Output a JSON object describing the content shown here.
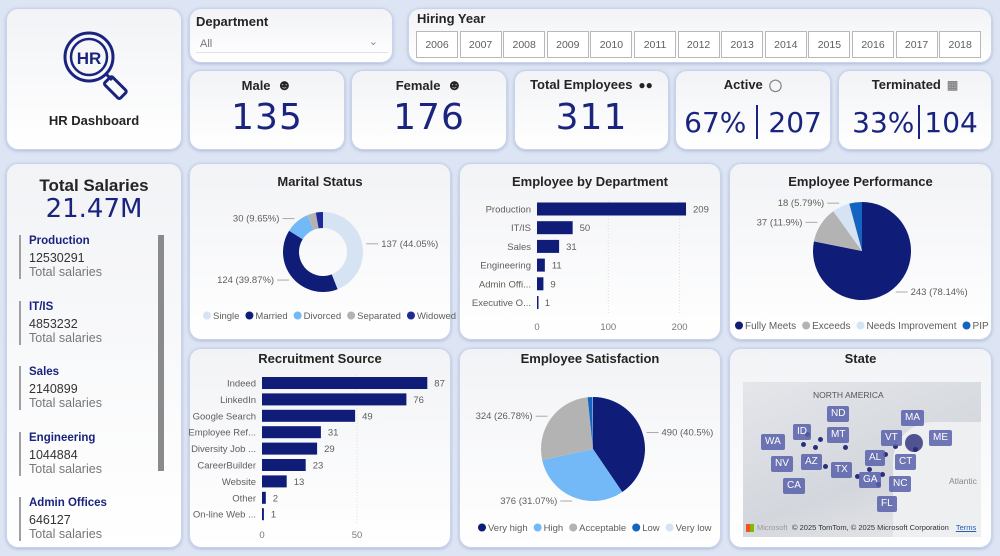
{
  "logo": {
    "text": "HR",
    "title": "HR Dashboard",
    "icon": "hr-magnifier-icon"
  },
  "department_filter": {
    "label": "Department",
    "value": "All"
  },
  "hiring_year": {
    "label": "Hiring Year",
    "years": [
      "2006",
      "2007",
      "2008",
      "2009",
      "2010",
      "2011",
      "2012",
      "2013",
      "2014",
      "2015",
      "2016",
      "2017",
      "2018"
    ]
  },
  "kpis": {
    "male": {
      "label": "Male",
      "value": "135",
      "icon": "male-face-icon"
    },
    "female": {
      "label": "Female",
      "value": "176",
      "icon": "female-face-icon"
    },
    "total": {
      "label": "Total Employees",
      "value": "311",
      "icon": "group-icon"
    },
    "active": {
      "label": "Active",
      "pct": "67%",
      "value": "207",
      "icon": "team-icon"
    },
    "terminated": {
      "label": "Terminated",
      "pct": "33%",
      "value": "104",
      "icon": "exit-icon"
    }
  },
  "salaries": {
    "title": "Total Salaries",
    "total": "21.47M",
    "items": [
      {
        "name": "Production",
        "value": "12530291",
        "label": "Total salaries"
      },
      {
        "name": "IT/IS",
        "value": "4853232",
        "label": "Total salaries"
      },
      {
        "name": "Sales",
        "value": "2140899",
        "label": "Total salaries"
      },
      {
        "name": "Engineering",
        "value": "1044884",
        "label": "Total salaries"
      },
      {
        "name": "Admin Offices",
        "value": "646127",
        "label": "Total salaries"
      }
    ]
  },
  "colors": {
    "navy": "#0f1c78",
    "light": "#d6e3f3",
    "sky": "#74b9f7",
    "gray": "#b3b3b3",
    "blue": "#1565c0",
    "indigo": "#1e2a9a"
  },
  "chart_data": [
    {
      "id": "marital",
      "type": "pie",
      "donut": true,
      "title": "Marital Status",
      "categories": [
        "Single",
        "Married",
        "Divorced",
        "Separated",
        "Widowed"
      ],
      "values": [
        137,
        124,
        30,
        11,
        9
      ],
      "labels": [
        "137 (44.05%)",
        "124 (39.87%)",
        "30 (9.65%)",
        "",
        ""
      ],
      "colors": [
        "#d6e3f3",
        "#0f1c78",
        "#74b9f7",
        "#b3b3b3",
        "#1e2a9a"
      ],
      "legend": "bottom"
    },
    {
      "id": "dept",
      "type": "bar",
      "orientation": "horizontal",
      "title": "Employee by Department",
      "categories": [
        "Production",
        "IT/IS",
        "Sales",
        "Engineering",
        "Admin Offi...",
        "Executive O..."
      ],
      "values": [
        209,
        50,
        31,
        11,
        9,
        1
      ],
      "xticks": [
        "0",
        "100",
        "200"
      ],
      "xlim": [
        0,
        230
      ]
    },
    {
      "id": "perf",
      "type": "pie",
      "title": "Employee Performance",
      "categories": [
        "Fully Meets",
        "Exceeds",
        "Needs Improvement",
        "PIP"
      ],
      "values": [
        243,
        37,
        18,
        13
      ],
      "labels": [
        "243 (78.14%)",
        "37 (11.9%)",
        "18 (5.79%)",
        ""
      ],
      "colors": [
        "#0f1c78",
        "#b3b3b3",
        "#d6e3f3",
        "#1565c0"
      ],
      "legend": "bottom"
    },
    {
      "id": "recruit",
      "type": "bar",
      "orientation": "horizontal",
      "title": "Recruitment Source",
      "categories": [
        "Indeed",
        "LinkedIn",
        "Google Search",
        "Employee Ref...",
        "Diversity Job ...",
        "CareerBuilder",
        "Website",
        "Other",
        "On-line Web ..."
      ],
      "values": [
        87,
        76,
        49,
        31,
        29,
        23,
        13,
        2,
        1
      ],
      "xticks": [
        "0",
        "50"
      ],
      "xlim": [
        0,
        95
      ]
    },
    {
      "id": "satis",
      "type": "pie",
      "title": "Employee Satisfaction",
      "categories": [
        "Very high",
        "High",
        "Acceptable",
        "Low",
        "Very low"
      ],
      "values": [
        490,
        376,
        324,
        18,
        2
      ],
      "labels": [
        "490 (40.5%)",
        "376 (31.07%)",
        "324 (26.78%)",
        "",
        ""
      ],
      "colors": [
        "#0f1c78",
        "#74b9f7",
        "#b3b3b3",
        "#1565c0",
        "#d6e3f3"
      ],
      "legend": "bottom"
    }
  ],
  "map": {
    "title": "State",
    "region_label": "NORTH AMERICA",
    "ocean_label": "Atlantic",
    "attribution": "© 2025 TomTom, © 2025 Microsoft Corporation",
    "terms": "Terms",
    "brand": "Microsoft Bing",
    "states": [
      "WA",
      "ID",
      "ND",
      "MT",
      "NV",
      "AZ",
      "TX",
      "AL",
      "VT",
      "GA",
      "CT",
      "MA",
      "ME",
      "NC",
      "FL",
      "CA"
    ]
  }
}
